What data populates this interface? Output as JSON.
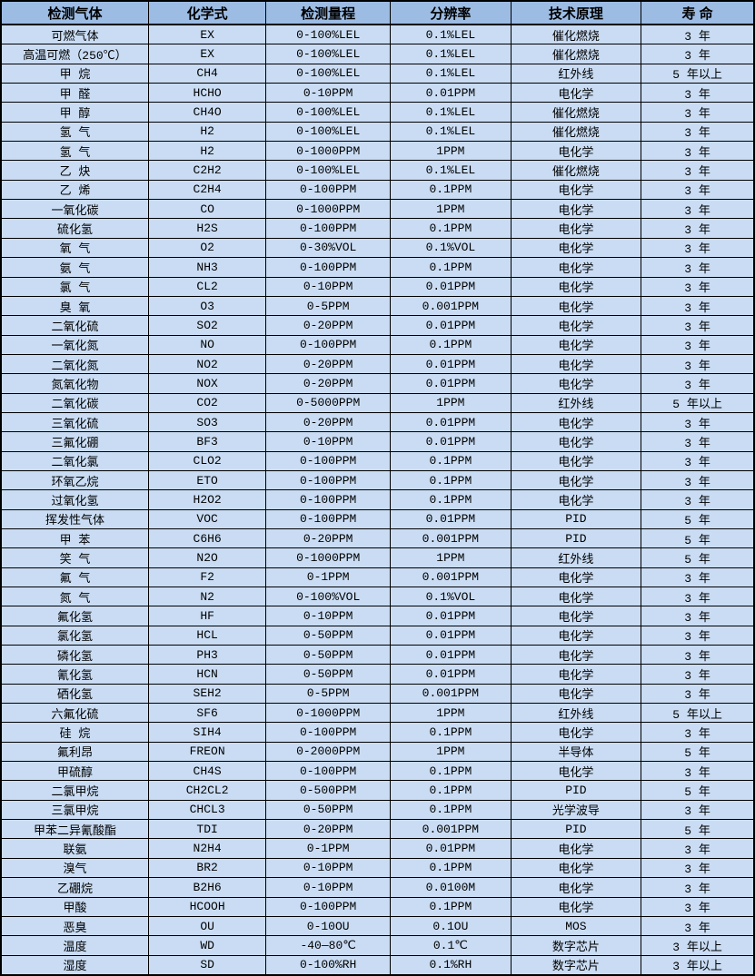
{
  "colors": {
    "header_bg": "#9cbce4",
    "row_bg": "#c9dcf3",
    "border": "#000000",
    "text": "#000000"
  },
  "table": {
    "headers": [
      "检测气体",
      "化学式",
      "检测量程",
      "分辨率",
      "技术原理",
      "寿 命"
    ],
    "rows": [
      [
        "可燃气体",
        "EX",
        "0-100%LEL",
        "0.1%LEL",
        "催化燃烧",
        "3 年"
      ],
      [
        "高温可燃（250℃）",
        "EX",
        "0-100%LEL",
        "0.1%LEL",
        "催化燃烧",
        "3 年"
      ],
      [
        "甲 烷",
        "CH4",
        "0-100%LEL",
        "0.1%LEL",
        "红外线",
        "5 年以上"
      ],
      [
        "甲 醛",
        "HCHO",
        "0-10PPM",
        "0.01PPM",
        "电化学",
        "3 年"
      ],
      [
        "甲 醇",
        "CH4O",
        "0-100%LEL",
        "0.1%LEL",
        "催化燃烧",
        "3 年"
      ],
      [
        "氢 气",
        "H2",
        "0-100%LEL",
        "0.1%LEL",
        "催化燃烧",
        "3 年"
      ],
      [
        "氢 气",
        "H2",
        "0-1000PPM",
        "1PPM",
        "电化学",
        "3 年"
      ],
      [
        "乙 炔",
        "C2H2",
        "0-100%LEL",
        "0.1%LEL",
        "催化燃烧",
        "3 年"
      ],
      [
        "乙 烯",
        "C2H4",
        "0-100PPM",
        "0.1PPM",
        "电化学",
        "3 年"
      ],
      [
        "一氧化碳",
        "CO",
        "0-1000PPM",
        "1PPM",
        "电化学",
        "3 年"
      ],
      [
        "硫化氢",
        "H2S",
        "0-100PPM",
        "0.1PPM",
        "电化学",
        "3 年"
      ],
      [
        "氧 气",
        "O2",
        "0-30%VOL",
        "0.1%VOL",
        "电化学",
        "3 年"
      ],
      [
        "氨 气",
        "NH3",
        "0-100PPM",
        "0.1PPM",
        "电化学",
        "3 年"
      ],
      [
        "氯 气",
        "CL2",
        "0-10PPM",
        "0.01PPM",
        "电化学",
        "3 年"
      ],
      [
        "臭 氧",
        "O3",
        "0-5PPM",
        "0.001PPM",
        "电化学",
        "3 年"
      ],
      [
        "二氧化硫",
        "SO2",
        "0-20PPM",
        "0.01PPM",
        "电化学",
        "3 年"
      ],
      [
        "一氧化氮",
        "NO",
        "0-100PPM",
        "0.1PPM",
        "电化学",
        "3 年"
      ],
      [
        "二氧化氮",
        "NO2",
        "0-20PPM",
        "0.01PPM",
        "电化学",
        "3 年"
      ],
      [
        "氮氧化物",
        "NOX",
        "0-20PPM",
        "0.01PPM",
        "电化学",
        "3 年"
      ],
      [
        "二氧化碳",
        "CO2",
        "0-5000PPM",
        "1PPM",
        "红外线",
        "5 年以上"
      ],
      [
        "三氧化硫",
        "SO3",
        "0-20PPM",
        "0.01PPM",
        "电化学",
        "3 年"
      ],
      [
        "三氟化硼",
        "BF3",
        "0-10PPM",
        "0.01PPM",
        "电化学",
        "3 年"
      ],
      [
        "二氧化氯",
        "CLO2",
        "0-100PPM",
        "0.1PPM",
        "电化学",
        "3 年"
      ],
      [
        "环氧乙烷",
        "ETO",
        "0-100PPM",
        "0.1PPM",
        "电化学",
        "3 年"
      ],
      [
        "过氧化氢",
        "H2O2",
        "0-100PPM",
        "0.1PPM",
        "电化学",
        "3 年"
      ],
      [
        "挥发性气体",
        "VOC",
        "0-100PPM",
        "0.01PPM",
        "PID",
        "5 年"
      ],
      [
        "甲 苯",
        "C6H6",
        "0-20PPM",
        "0.001PPM",
        "PID",
        "5 年"
      ],
      [
        "笑 气",
        "N2O",
        "0-1000PPM",
        "1PPM",
        "红外线",
        "5 年"
      ],
      [
        "氟 气",
        "F2",
        "0-1PPM",
        "0.001PPM",
        "电化学",
        "3 年"
      ],
      [
        "氮 气",
        "N2",
        "0-100%VOL",
        "0.1%VOL",
        "电化学",
        "3 年"
      ],
      [
        "氟化氢",
        "HF",
        "0-10PPM",
        "0.01PPM",
        "电化学",
        "3 年"
      ],
      [
        "氯化氢",
        "HCL",
        "0-50PPM",
        "0.01PPM",
        "电化学",
        "3 年"
      ],
      [
        "磷化氢",
        "PH3",
        "0-50PPM",
        "0.01PPM",
        "电化学",
        "3 年"
      ],
      [
        "氰化氢",
        "HCN",
        "0-50PPM",
        "0.01PPM",
        "电化学",
        "3 年"
      ],
      [
        "硒化氢",
        "SEH2",
        "0-5PPM",
        "0.001PPM",
        "电化学",
        "3 年"
      ],
      [
        "六氟化硫",
        "SF6",
        "0-1000PPM",
        "1PPM",
        "红外线",
        "5 年以上"
      ],
      [
        "硅 烷",
        "SIH4",
        "0-100PPM",
        "0.1PPM",
        "电化学",
        "3 年"
      ],
      [
        "氟利昂",
        "FREON",
        "0-2000PPM",
        "1PPM",
        "半导体",
        "5 年"
      ],
      [
        "甲硫醇",
        "CH4S",
        "0-100PPM",
        "0.1PPM",
        "电化学",
        "3 年"
      ],
      [
        "二氯甲烷",
        "CH2CL2",
        "0-500PPM",
        "0.1PPM",
        "PID",
        "5 年"
      ],
      [
        "三氯甲烷",
        "CHCL3",
        "0-50PPM",
        "0.1PPM",
        "光学波导",
        "3 年"
      ],
      [
        "甲苯二异氰酸酯",
        "TDI",
        "0-20PPM",
        "0.001PPM",
        "PID",
        "5 年"
      ],
      [
        "联氨",
        "N2H4",
        "0-1PPM",
        "0.01PPM",
        "电化学",
        "3 年"
      ],
      [
        "溴气",
        "BR2",
        "0-10PPM",
        "0.1PPM",
        "电化学",
        "3 年"
      ],
      [
        "乙硼烷",
        "B2H6",
        "0-10PPM",
        "0.0100M",
        "电化学",
        "3 年"
      ],
      [
        "甲酸",
        "HCOOH",
        "0-100PPM",
        "0.1PPM",
        "电化学",
        "3 年"
      ],
      [
        "恶臭",
        "OU",
        "0-10OU",
        "0.1OU",
        "MOS",
        "3 年"
      ],
      [
        "温度",
        "WD",
        "-40—80℃",
        "0.1℃",
        "数字芯片",
        "3 年以上"
      ],
      [
        "湿度",
        "SD",
        "0-100%RH",
        "0.1%RH",
        "数字芯片",
        "3 年以上"
      ]
    ]
  }
}
